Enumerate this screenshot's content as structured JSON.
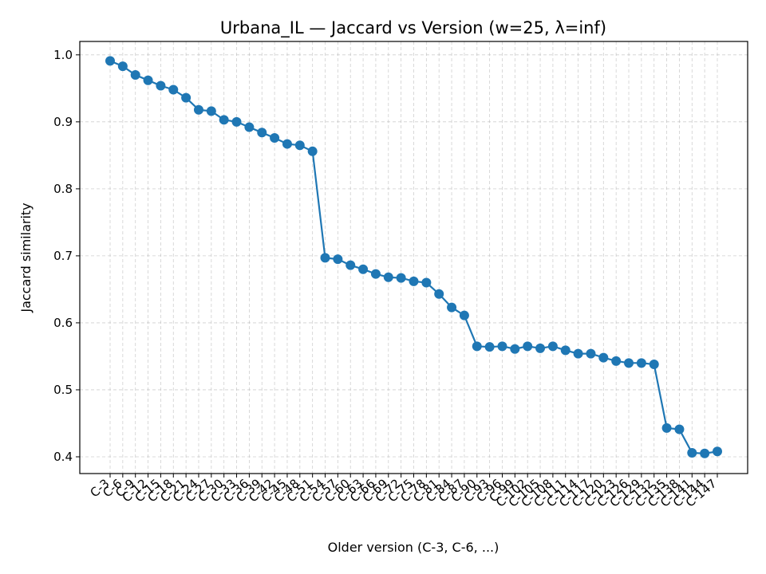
{
  "chart_data": {
    "type": "line",
    "title": "Urbana_IL — Jaccard vs Version (w=25, λ=inf)",
    "xlabel": "Older version (C-3, C-6, ...)",
    "ylabel": "Jaccard similarity",
    "ylim": [
      0.375,
      1.02
    ],
    "yticks": [
      "0.4",
      "0.5",
      "0.6",
      "0.7",
      "0.8",
      "0.9",
      "1.0"
    ],
    "grid": true,
    "categories": [
      "C-3",
      "C-6",
      "C-9",
      "C-12",
      "C-15",
      "C-18",
      "C-21",
      "C-24",
      "C-27",
      "C-30",
      "C-33",
      "C-36",
      "C-39",
      "C-42",
      "C-45",
      "C-48",
      "C-51",
      "C-54",
      "C-57",
      "C-60",
      "C-63",
      "C-66",
      "C-69",
      "C-72",
      "C-75",
      "C-78",
      "C-81",
      "C-84",
      "C-87",
      "C-90",
      "C-93",
      "C-96",
      "C-99",
      "C-102",
      "C-105",
      "C-108",
      "C-111",
      "C-114",
      "C-117",
      "C-120",
      "C-123",
      "C-126",
      "C-129",
      "C-132",
      "C-135",
      "C-138",
      "C-141",
      "C-144",
      "C-147"
    ],
    "series": [
      {
        "color": "#1f77b4",
        "values": [
          0.991,
          0.983,
          0.97,
          0.962,
          0.954,
          0.948,
          0.936,
          0.918,
          0.916,
          0.903,
          0.9,
          0.892,
          0.884,
          0.876,
          0.867,
          0.865,
          0.856,
          0.697,
          0.695,
          0.686,
          0.68,
          0.673,
          0.668,
          0.667,
          0.662,
          0.66,
          0.643,
          0.623,
          0.611,
          0.565,
          0.564,
          0.565,
          0.561,
          0.565,
          0.562,
          0.565,
          0.559,
          0.554,
          0.554,
          0.548,
          0.543,
          0.54,
          0.54,
          0.538,
          0.443,
          0.441,
          0.406,
          0.405,
          0.408
        ]
      }
    ]
  }
}
